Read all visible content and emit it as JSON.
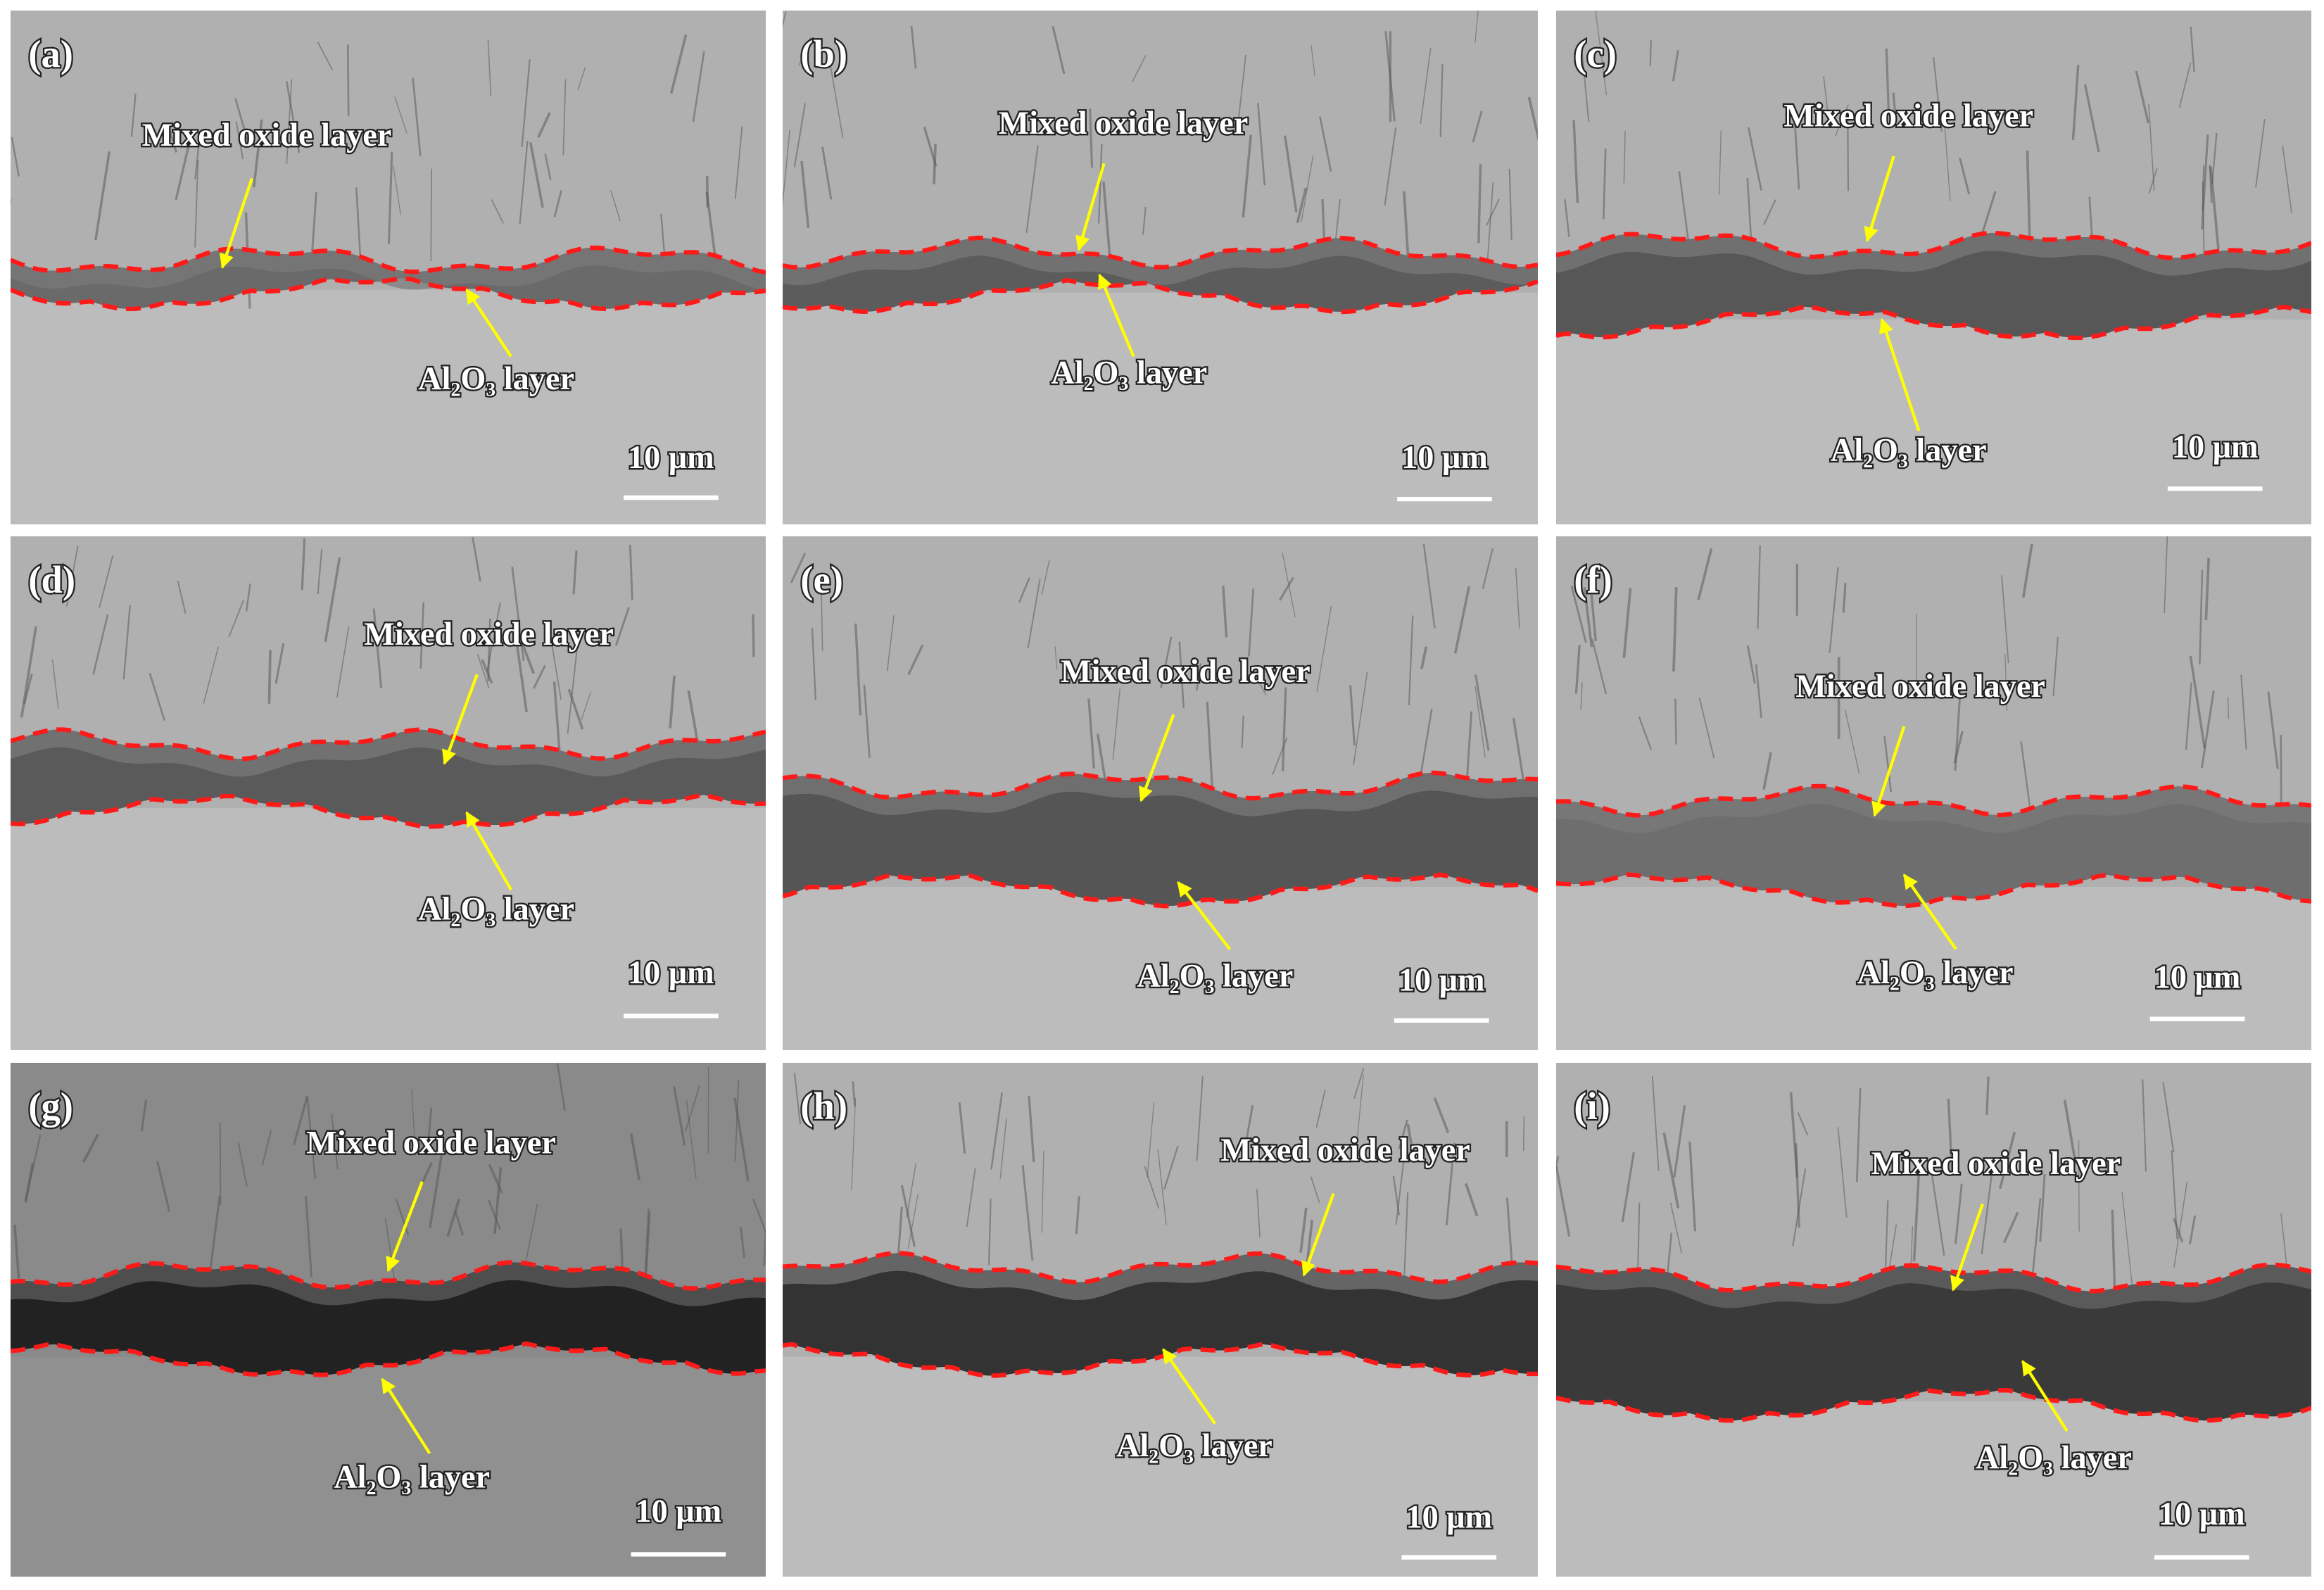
{
  "panels": [
    {
      "label": "(a)",
      "mixed_label": "Mixed oxide layer",
      "al_label": "Al₂O₃ layer",
      "scale": "10 μm"
    },
    {
      "label": "(b)",
      "mixed_label": "Mixed oxide layer",
      "al_label": "Al₂O₃ layer",
      "scale": "10 μm"
    },
    {
      "label": "(c)",
      "mixed_label": "Mixed oxide layer",
      "al_label": "Al₂O₃ layer",
      "scale": "10 μm"
    },
    {
      "label": "(d)",
      "mixed_label": "Mixed oxide layer",
      "al_label": "Al₂O₃ layer",
      "scale": "10 μm"
    },
    {
      "label": "(e)",
      "mixed_label": "Mixed oxide layer",
      "al_label": "Al₂O₃ layer",
      "scale": "10 μm"
    },
    {
      "label": "(f)",
      "mixed_label": "Mixed oxide layer",
      "al_label": "Al₂O₃ layer",
      "scale": "10 μm"
    },
    {
      "label": "(g)",
      "mixed_label": "Mixed oxide layer",
      "al_label": "Al₂O₃ layer",
      "scale": "10 μm"
    },
    {
      "label": "(h)",
      "mixed_label": "Mixed oxide layer",
      "al_label": "Al₂O₃ layer",
      "scale": "10 μm"
    },
    {
      "label": "(i)",
      "mixed_label": "Mixed oxide layer",
      "al_label": "Al₂O₃ layer",
      "scale": "10 μm"
    }
  ]
}
